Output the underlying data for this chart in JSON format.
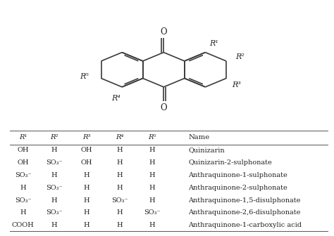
{
  "fig_width": 4.74,
  "fig_height": 3.36,
  "dpi": 100,
  "bg_color": "#ffffff",
  "table_header": [
    "R¹",
    "R²",
    "R³",
    "R⁴",
    "R⁵",
    "Name"
  ],
  "table_rows": [
    [
      "OH",
      "H",
      "OH",
      "H",
      "H",
      "Quinizarin"
    ],
    [
      "OH",
      "SO₃⁻",
      "OH",
      "H",
      "H",
      "Quinizarin-2-sulphonate"
    ],
    [
      "SO₃⁻",
      "H",
      "H",
      "H",
      "H",
      "Anthraquinone-1-sulphonate"
    ],
    [
      "H",
      "SO₃⁻",
      "H",
      "H",
      "H",
      "Anthraquinone-2-sulphonate"
    ],
    [
      "SO₃⁻",
      "H",
      "H",
      "SO₃⁻",
      "H",
      "Anthraquinone-1,5-disulphonate"
    ],
    [
      "H",
      "SO₃⁻",
      "H",
      "H",
      "SO₃⁻",
      "Anthraquinone-2,6-disulphonate"
    ],
    [
      "COOH",
      "H",
      "H",
      "H",
      "H",
      "Anthraquinone-1-carboxylic acid"
    ]
  ]
}
